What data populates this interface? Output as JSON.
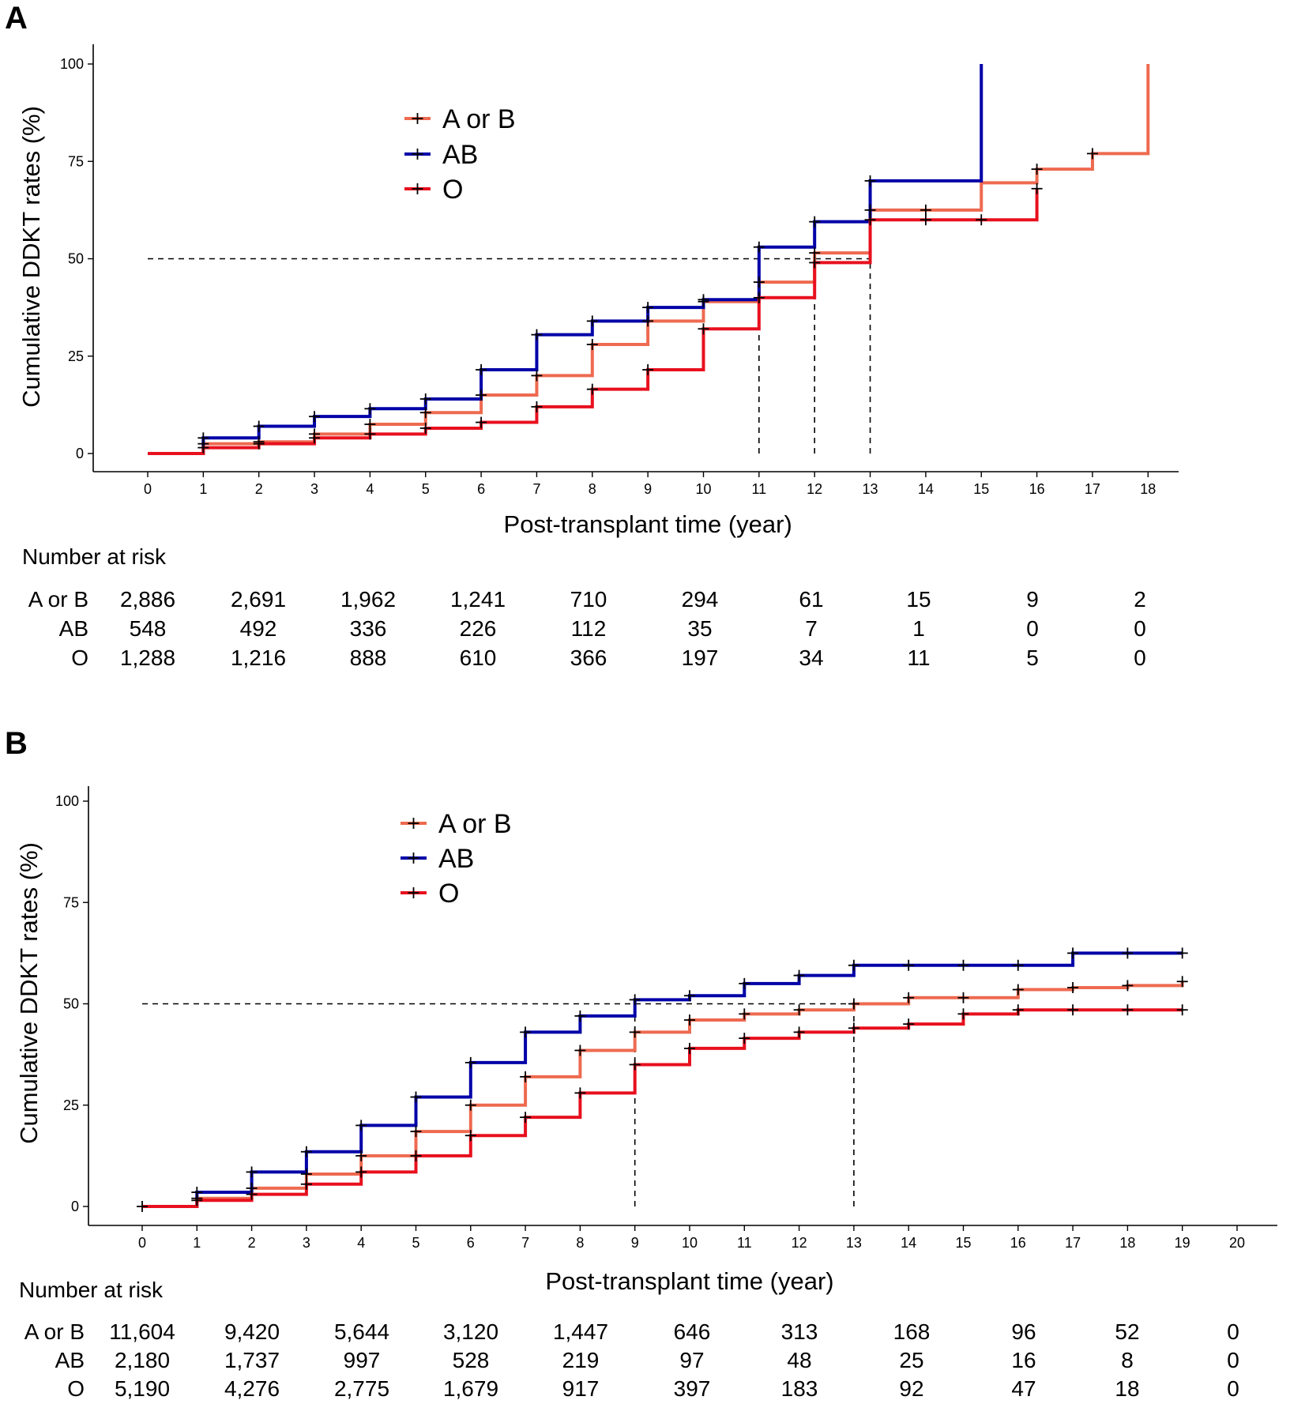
{
  "colors": {
    "A or B": "#EE6A50",
    "AB": "#0000A8",
    "O": "#E8101E"
  },
  "chart_data": [
    {
      "panel_label": "A",
      "type": "line",
      "subtype": "step",
      "title": "",
      "xlabel": "Post-transplant time (year)",
      "ylabel": "Cumulative DDKT rates (%)",
      "xlim": [
        0,
        18
      ],
      "ylim": [
        0,
        100
      ],
      "x_ticks": [
        0,
        1,
        2,
        3,
        4,
        5,
        6,
        7,
        8,
        9,
        10,
        11,
        12,
        13,
        14,
        15,
        16,
        17,
        18
      ],
      "y_ticks": [
        0,
        25,
        50,
        75,
        100
      ],
      "legend": [
        "A or B",
        "AB",
        "O"
      ],
      "legend_position": "top-left",
      "reference_lines": {
        "y": 50,
        "x": [
          11,
          12,
          13
        ]
      },
      "series": [
        {
          "name": "A or B",
          "x": [
            0,
            1,
            2,
            3,
            4,
            5,
            6,
            7,
            8,
            9,
            10,
            11,
            12,
            13,
            15,
            16,
            17,
            18
          ],
          "y": [
            0,
            2.5,
            3,
            5,
            7.5,
            10.5,
            15,
            20,
            28,
            34,
            39,
            44,
            51.5,
            62.5,
            69.5,
            73,
            77,
            100
          ],
          "censor_x": [
            1,
            2,
            3,
            4,
            5,
            6,
            7,
            8,
            9,
            10,
            11,
            12,
            13,
            14,
            16,
            17
          ],
          "censor_y": [
            2.5,
            3,
            5,
            7.5,
            10.5,
            15,
            20,
            28,
            34,
            39,
            44,
            51.5,
            62.5,
            62.5,
            73,
            77
          ]
        },
        {
          "name": "AB",
          "x": [
            0,
            1,
            2,
            3,
            4,
            5,
            6,
            7,
            8,
            9,
            10,
            11,
            12,
            13,
            15
          ],
          "y": [
            0,
            4,
            7,
            9.5,
            11.5,
            14,
            21.5,
            30.5,
            34,
            37.5,
            39.5,
            53,
            59.5,
            70,
            100
          ],
          "censor_x": [
            1,
            2,
            3,
            4,
            5,
            6,
            7,
            8,
            9,
            10,
            11,
            12,
            13
          ],
          "censor_y": [
            4,
            7,
            9.5,
            11.5,
            14,
            21.5,
            30.5,
            34,
            37.5,
            39.5,
            53,
            59.5,
            70
          ]
        },
        {
          "name": "O",
          "x": [
            0,
            1,
            2,
            3,
            4,
            5,
            6,
            7,
            8,
            9,
            10,
            11,
            12,
            13,
            16
          ],
          "y": [
            0,
            1.5,
            2.5,
            4,
            5,
            6.5,
            8,
            12,
            16.5,
            21.5,
            32,
            40,
            49,
            60,
            68
          ],
          "censor_x": [
            1,
            2,
            3,
            4,
            5,
            6,
            7,
            8,
            9,
            10,
            11,
            12,
            13,
            14,
            15,
            16
          ],
          "censor_y": [
            1.5,
            2.5,
            4,
            5,
            6.5,
            8,
            12,
            16.5,
            21.5,
            32,
            40,
            49,
            60,
            60,
            60,
            68
          ]
        }
      ],
      "risk_table": {
        "title": "Number at risk",
        "times": [
          0,
          2,
          4,
          6,
          8,
          10,
          12,
          14,
          16,
          18
        ],
        "rows": [
          {
            "label": "A or B",
            "values": [
              "2,886",
              "2,691",
              "1,962",
              "1,241",
              "710",
              "294",
              "61",
              "15",
              "9",
              "2"
            ]
          },
          {
            "label": "AB",
            "values": [
              "548",
              "492",
              "336",
              "226",
              "112",
              "35",
              "7",
              "1",
              "0",
              "0"
            ]
          },
          {
            "label": "O",
            "values": [
              "1,288",
              "1,216",
              "888",
              "610",
              "366",
              "197",
              "34",
              "11",
              "5",
              "0"
            ]
          }
        ]
      }
    },
    {
      "panel_label": "B",
      "type": "line",
      "subtype": "step",
      "title": "",
      "xlabel": "Post-transplant time (year)",
      "ylabel": "Cumulative DDKT rates (%)",
      "xlim": [
        0,
        20
      ],
      "ylim": [
        0,
        100
      ],
      "x_ticks": [
        0,
        1,
        2,
        3,
        4,
        5,
        6,
        7,
        8,
        9,
        10,
        11,
        12,
        13,
        14,
        15,
        16,
        17,
        18,
        19,
        20
      ],
      "y_ticks": [
        0,
        25,
        50,
        75,
        100
      ],
      "legend": [
        "A or B",
        "AB",
        "O"
      ],
      "legend_position": "top-left",
      "reference_lines": {
        "y": 50,
        "x": [
          9,
          13
        ]
      },
      "series": [
        {
          "name": "A or B",
          "x": [
            0,
            1,
            2,
            3,
            4,
            5,
            6,
            7,
            8,
            9,
            10,
            11,
            12,
            13,
            14,
            15,
            16,
            17,
            18,
            19
          ],
          "y": [
            0,
            2,
            4.5,
            8,
            12.5,
            18.5,
            25,
            32,
            38.5,
            43,
            46,
            47.5,
            48.5,
            50,
            51.5,
            51.5,
            53.5,
            54,
            54.5,
            55.5
          ],
          "censor_x": [
            1,
            2,
            3,
            4,
            5,
            6,
            7,
            8,
            9,
            10,
            11,
            12,
            13,
            14,
            15,
            16,
            17,
            18,
            19
          ],
          "censor_y": [
            2,
            4.5,
            8,
            12.5,
            18.5,
            25,
            32,
            38.5,
            43,
            46,
            47.5,
            48.5,
            50,
            51.5,
            51.5,
            53.5,
            54,
            54.5,
            55.5
          ]
        },
        {
          "name": "AB",
          "x": [
            0,
            1,
            2,
            3,
            4,
            5,
            6,
            7,
            8,
            9,
            10,
            11,
            12,
            13,
            14,
            15,
            16,
            17,
            18,
            19
          ],
          "y": [
            0,
            3.5,
            8.5,
            13.5,
            20,
            27,
            35.5,
            43,
            47,
            51,
            52,
            55,
            57,
            59.5,
            59.5,
            59.5,
            59.5,
            62.5,
            62.5,
            62.5
          ],
          "censor_x": [
            1,
            2,
            3,
            4,
            5,
            6,
            7,
            8,
            9,
            10,
            11,
            12,
            13,
            14,
            15,
            16,
            17,
            18,
            19
          ],
          "censor_y": [
            3.5,
            8.5,
            13.5,
            20,
            27,
            35.5,
            43,
            47,
            51,
            52,
            55,
            57,
            59.5,
            59.5,
            59.5,
            59.5,
            62.5,
            62.5,
            62.5
          ]
        },
        {
          "name": "O",
          "x": [
            0,
            1,
            2,
            3,
            4,
            5,
            6,
            7,
            8,
            9,
            10,
            11,
            12,
            13,
            14,
            15,
            16,
            17,
            18,
            19
          ],
          "y": [
            0,
            1.5,
            3,
            5.5,
            8.5,
            12.5,
            17.5,
            22,
            28,
            35,
            39,
            41.5,
            43,
            44,
            45,
            47.5,
            48.5,
            48.5,
            48.5,
            48.5
          ],
          "censor_x": [
            0,
            1,
            2,
            3,
            4,
            5,
            6,
            7,
            8,
            9,
            10,
            11,
            12,
            13,
            14,
            15,
            16,
            17,
            18,
            19
          ],
          "censor_y": [
            0,
            1.5,
            3,
            5.5,
            8.5,
            12.5,
            17.5,
            22,
            28,
            35,
            39,
            41.5,
            43,
            44,
            45,
            47.5,
            48.5,
            48.5,
            48.5,
            48.5
          ]
        }
      ],
      "risk_table": {
        "title": "Number at risk",
        "times": [
          0,
          2,
          4,
          6,
          8,
          10,
          12,
          14,
          16,
          18,
          20
        ],
        "rows": [
          {
            "label": "A or B",
            "values": [
              "11,604",
              "9,420",
              "5,644",
              "3,120",
              "1,447",
              "646",
              "313",
              "168",
              "96",
              "52",
              "0"
            ]
          },
          {
            "label": "AB",
            "values": [
              "2,180",
              "1,737",
              "997",
              "528",
              "219",
              "97",
              "48",
              "25",
              "16",
              "8",
              "0"
            ]
          },
          {
            "label": "O",
            "values": [
              "5,190",
              "4,276",
              "2,775",
              "1,679",
              "917",
              "397",
              "183",
              "92",
              "47",
              "18",
              "0"
            ]
          }
        ]
      }
    }
  ]
}
